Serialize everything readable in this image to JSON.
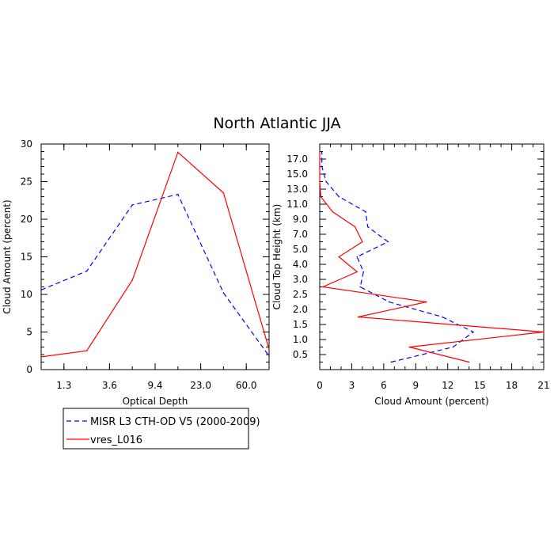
{
  "title": "North Atlantic JJA",
  "legend": {
    "placement": "bottom-left",
    "entries": [
      {
        "label": "MISR L3 CTH-OD V5 (2000-2009)",
        "color": "#0000ff",
        "dash": "dashed"
      },
      {
        "label": "vres_L016",
        "color": "#ff0000",
        "dash": "solid"
      }
    ]
  },
  "chart_data": [
    {
      "type": "line",
      "xlabel": "Optical Depth",
      "ylabel": "Cloud Amount (percent)",
      "x_tick_labels": [
        "1.3",
        "3.6",
        "9.4",
        "23.0",
        "60.0"
      ],
      "x": [
        0.3,
        1.3,
        2.3,
        3.6,
        6.0,
        9.4,
        15.0,
        23.0,
        41.0,
        60.0,
        100.0
      ],
      "y_ticks": [
        0,
        5,
        10,
        15,
        20,
        25,
        30
      ],
      "ylim": [
        0,
        30
      ],
      "grid": false,
      "series": [
        {
          "name": "MISR L3 CTH-OD V5 (2000-2009)",
          "color": "#0000ff",
          "dash": "dashed",
          "x": [
            0.3,
            2.3,
            6.0,
            15.0,
            41.0,
            100.0
          ],
          "values": [
            10.6,
            13.1,
            21.9,
            23.3,
            10.2,
            1.8
          ]
        },
        {
          "name": "vres_L016",
          "color": "#ff0000",
          "dash": "solid",
          "x": [
            0.3,
            2.3,
            6.0,
            15.0,
            41.0,
            100.0
          ],
          "values": [
            1.7,
            2.5,
            11.9,
            28.9,
            23.5,
            2.7
          ]
        }
      ]
    },
    {
      "type": "line",
      "xlabel": "Cloud Amount (percent)",
      "ylabel": "Cloud Top Height (km)",
      "x_ticks": [
        0,
        3,
        6,
        9,
        12,
        15,
        18,
        21
      ],
      "xlim": [
        0,
        21
      ],
      "y_tick_labels": [
        "0.5",
        "1.0",
        "1.5",
        "2.0",
        "2.5",
        "3.0",
        "4.0",
        "5.0",
        "7.0",
        "9.0",
        "11.0",
        "13.0",
        "15.0",
        "17.0"
      ],
      "grid": false,
      "series": [
        {
          "name": "MISR L3 CTH-OD V5 (2000-2009)",
          "color": "#0000ff",
          "dash": "dashed",
          "height_km": [
            "0.25",
            "0.75",
            "1.25",
            "1.75",
            "2.25",
            "2.75",
            "3.5",
            "4.5",
            "6.0",
            "8.0",
            "10.0",
            "12.0",
            "14.0",
            "16.0",
            "18.0"
          ],
          "values": [
            6.7,
            12.5,
            14.4,
            11.5,
            6.5,
            3.8,
            4.1,
            3.5,
            6.4,
            4.5,
            4.3,
            1.8,
            0.6,
            0.2,
            0.2
          ]
        },
        {
          "name": "vres_L016",
          "color": "#ff0000",
          "dash": "solid",
          "height_km": [
            "0.25",
            "0.75",
            "1.25",
            "1.75",
            "2.25",
            "2.75",
            "3.5",
            "4.5",
            "6.0",
            "8.0",
            "10.0",
            "12.0",
            "14.0",
            "16.0",
            "18.0"
          ],
          "values": [
            14.0,
            8.4,
            21.0,
            3.6,
            10.0,
            0.3,
            3.5,
            1.8,
            4.0,
            3.3,
            1.2,
            0.1,
            0.0,
            0.0,
            0.0
          ]
        }
      ]
    }
  ]
}
